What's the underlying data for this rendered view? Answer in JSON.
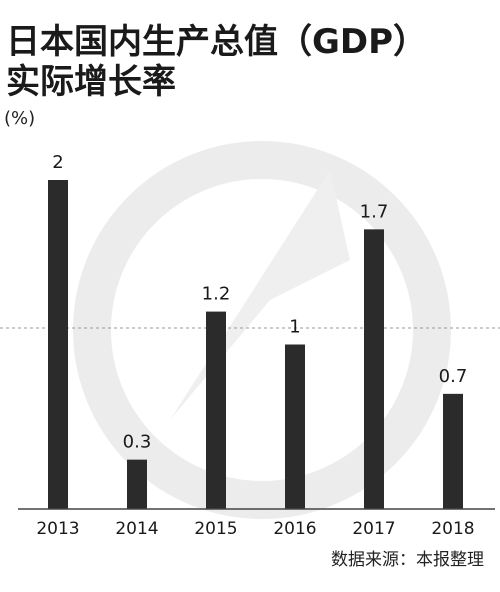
{
  "header": {
    "title_line1": "日本国内生产总值（GDP）",
    "title_line2": "实际增长率",
    "unit": "(%)"
  },
  "footer": {
    "source": "数据来源：本报整理"
  },
  "colors": {
    "bar": "#2b2b2b",
    "axis": "#444444",
    "dashed_line": "#999999",
    "watermark": "#ececec"
  },
  "chart_data": {
    "type": "bar",
    "title": "日本国内生产总值（GDP）实际增长率",
    "ylabel": "(%)",
    "categories": [
      "2013",
      "2014",
      "2015",
      "2016",
      "2017",
      "2018"
    ],
    "values": [
      2,
      0.3,
      1.2,
      1,
      1.7,
      0.7
    ],
    "data_labels": [
      "2",
      "0.3",
      "1.2",
      "1",
      "1.7",
      "0.7"
    ],
    "ylim": [
      0,
      2.5
    ],
    "grid": false,
    "legend": "none"
  }
}
